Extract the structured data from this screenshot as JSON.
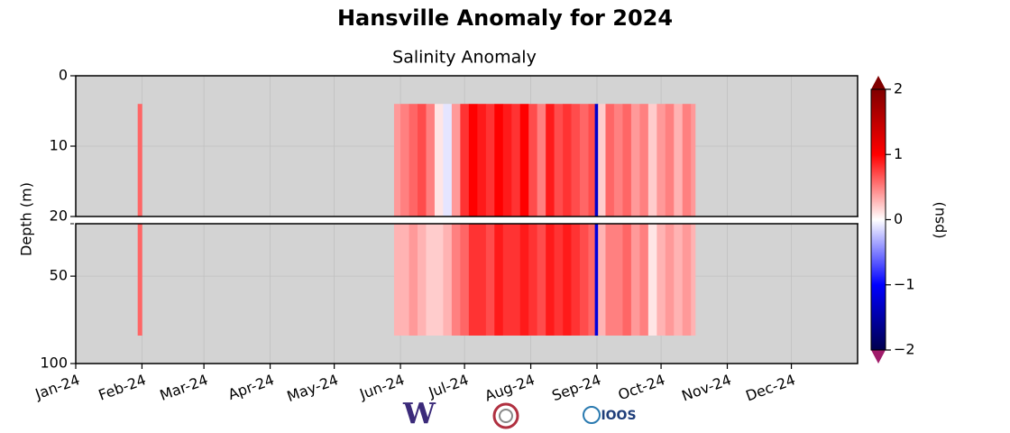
{
  "chart_data": {
    "type": "heatmap",
    "title": "Hansville Anomaly for 2024",
    "subtitle": "Salinity Anomaly",
    "ylabel": "Depth (m)",
    "xlim": [
      0,
      366
    ],
    "xticks": [
      {
        "value": 0,
        "label": "Jan-24"
      },
      {
        "value": 31,
        "label": "Feb-24"
      },
      {
        "value": 60,
        "label": "Mar-24"
      },
      {
        "value": 91,
        "label": "Apr-24"
      },
      {
        "value": 121,
        "label": "May-24"
      },
      {
        "value": 152,
        "label": "Jun-24"
      },
      {
        "value": 182,
        "label": "Jul-24"
      },
      {
        "value": 213,
        "label": "Aug-24"
      },
      {
        "value": 244,
        "label": "Sep-24"
      },
      {
        "value": 274,
        "label": "Oct-24"
      },
      {
        "value": 305,
        "label": "Nov-24"
      },
      {
        "value": 335,
        "label": "Dec-24"
      }
    ],
    "panels": [
      {
        "ylim": [
          0,
          20
        ],
        "yticks": [
          0,
          10,
          20
        ]
      },
      {
        "ylim": [
          20,
          100
        ],
        "yticks": [
          50,
          100
        ]
      }
    ],
    "y_inverted": true,
    "y_edges": [
      4,
      20,
      84
    ],
    "columns": [
      {
        "x": [
          29,
          31
        ],
        "values": [
          0.6,
          0.6
        ]
      },
      {
        "x": [
          149,
          152
        ],
        "values": [
          0.4,
          0.3
        ]
      },
      {
        "x": [
          152,
          156
        ],
        "values": [
          0.5,
          0.3
        ]
      },
      {
        "x": [
          156,
          160
        ],
        "values": [
          0.6,
          0.4
        ]
      },
      {
        "x": [
          160,
          164
        ],
        "values": [
          0.7,
          0.3
        ]
      },
      {
        "x": [
          164,
          168
        ],
        "values": [
          0.5,
          0.2
        ]
      },
      {
        "x": [
          168,
          172
        ],
        "values": [
          0.1,
          0.2
        ]
      },
      {
        "x": [
          172,
          176
        ],
        "values": [
          -0.1,
          0.3
        ]
      },
      {
        "x": [
          176,
          180
        ],
        "values": [
          0.4,
          0.5
        ]
      },
      {
        "x": [
          180,
          184
        ],
        "values": [
          0.8,
          0.6
        ]
      },
      {
        "x": [
          184,
          188
        ],
        "values": [
          1.0,
          0.8
        ]
      },
      {
        "x": [
          188,
          192
        ],
        "values": [
          0.9,
          0.8
        ]
      },
      {
        "x": [
          192,
          196
        ],
        "values": [
          0.8,
          0.7
        ]
      },
      {
        "x": [
          196,
          200
        ],
        "values": [
          1.0,
          0.9
        ]
      },
      {
        "x": [
          200,
          204
        ],
        "values": [
          0.9,
          0.8
        ]
      },
      {
        "x": [
          204,
          208
        ],
        "values": [
          0.8,
          0.8
        ]
      },
      {
        "x": [
          208,
          212
        ],
        "values": [
          1.0,
          0.9
        ]
      },
      {
        "x": [
          212,
          216
        ],
        "values": [
          0.7,
          0.8
        ]
      },
      {
        "x": [
          216,
          220
        ],
        "values": [
          0.5,
          0.7
        ]
      },
      {
        "x": [
          220,
          224
        ],
        "values": [
          0.9,
          0.9
        ]
      },
      {
        "x": [
          224,
          228
        ],
        "values": [
          0.7,
          0.8
        ]
      },
      {
        "x": [
          228,
          232
        ],
        "values": [
          0.8,
          0.9
        ]
      },
      {
        "x": [
          232,
          236
        ],
        "values": [
          0.7,
          0.8
        ]
      },
      {
        "x": [
          236,
          240
        ],
        "values": [
          0.6,
          0.7
        ]
      },
      {
        "x": [
          240,
          243
        ],
        "values": [
          0.7,
          0.6
        ]
      },
      {
        "x": [
          243,
          244.5
        ],
        "values": [
          -1.3,
          -1.2
        ]
      },
      {
        "x": [
          244.5,
          248
        ],
        "values": [
          0.2,
          0.3
        ]
      },
      {
        "x": [
          248,
          252
        ],
        "values": [
          0.6,
          0.5
        ]
      },
      {
        "x": [
          252,
          256
        ],
        "values": [
          0.5,
          0.5
        ]
      },
      {
        "x": [
          256,
          260
        ],
        "values": [
          0.6,
          0.6
        ]
      },
      {
        "x": [
          260,
          264
        ],
        "values": [
          0.4,
          0.4
        ]
      },
      {
        "x": [
          264,
          268
        ],
        "values": [
          0.5,
          0.5
        ]
      },
      {
        "x": [
          268,
          272
        ],
        "values": [
          0.2,
          0.1
        ]
      },
      {
        "x": [
          272,
          276
        ],
        "values": [
          0.4,
          0.3
        ]
      },
      {
        "x": [
          276,
          280
        ],
        "values": [
          0.5,
          0.4
        ]
      },
      {
        "x": [
          280,
          284
        ],
        "values": [
          0.3,
          0.3
        ]
      },
      {
        "x": [
          284,
          288
        ],
        "values": [
          0.5,
          0.4
        ]
      },
      {
        "x": [
          288,
          290
        ],
        "values": [
          0.4,
          0.3
        ]
      }
    ],
    "colormap": "seismic",
    "clim": [
      -2,
      2
    ],
    "cticks": [
      2,
      1,
      0,
      {
        "value": -1,
        "label": "−1"
      },
      {
        "value": -2,
        "label": "−2"
      }
    ],
    "clabel": "(psu)",
    "grid": true
  },
  "logos": [
    "W",
    "IOOS"
  ]
}
